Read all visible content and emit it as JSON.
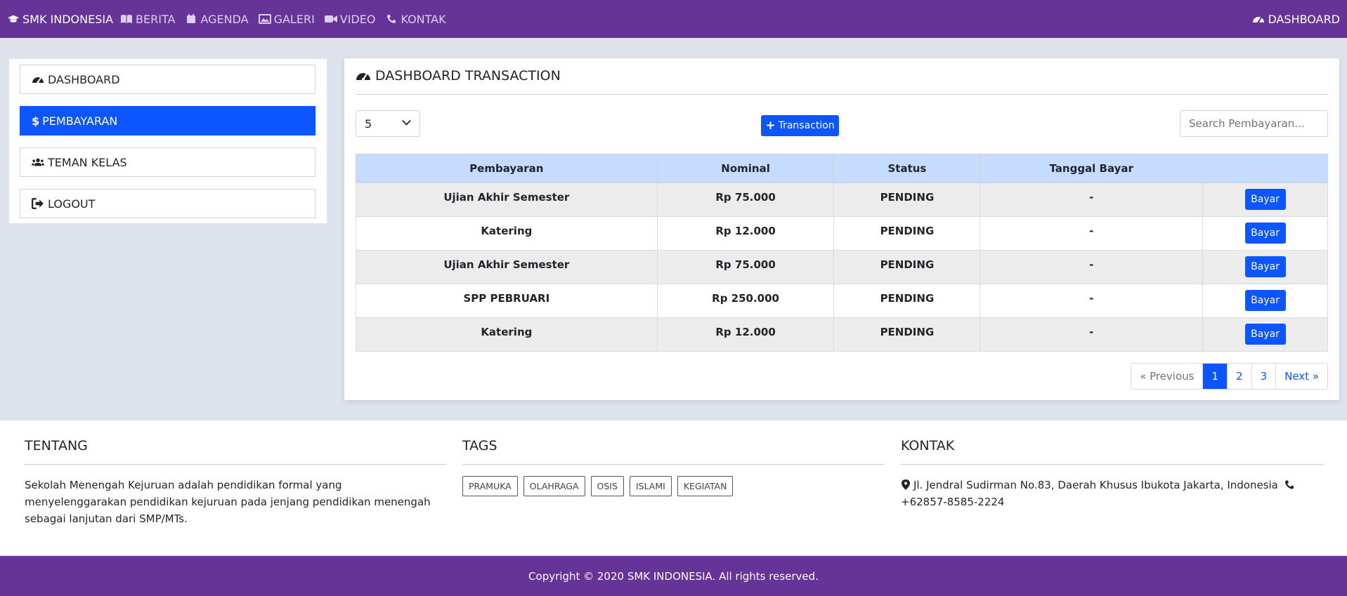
{
  "navbar": {
    "brand": "SMK INDONESIA",
    "items": [
      {
        "label": "BERITA",
        "icon": "book-icon"
      },
      {
        "label": "AGENDA",
        "icon": "calendar-icon"
      },
      {
        "label": "GALERI",
        "icon": "image-icon"
      },
      {
        "label": "VIDEO",
        "icon": "video-icon"
      },
      {
        "label": "KONTAK",
        "icon": "phone-icon"
      }
    ],
    "right_label": "DASHBOARD"
  },
  "sidebar": {
    "items": [
      {
        "label": "DASHBOARD",
        "icon": "gauge-icon"
      },
      {
        "label": "PEMBAYARAN",
        "icon": "dollar-icon",
        "active": true
      },
      {
        "label": "TEMAN KELAS",
        "icon": "users-icon"
      },
      {
        "label": "LOGOUT",
        "icon": "sign-out-icon"
      }
    ]
  },
  "main": {
    "title": "DASHBOARD TRANSACTION",
    "per_page_value": "5",
    "add_button_label": "Transaction",
    "search_placeholder": "Search Pembayaran...",
    "table": {
      "headers": [
        "Pembayaran",
        "Nominal",
        "Status",
        "Tanggal Bayar",
        ""
      ],
      "rows": [
        {
          "pembayaran": "Ujian Akhir Semester",
          "nominal": "Rp 75.000",
          "status": "PENDING",
          "tanggal": "-",
          "action": "Bayar"
        },
        {
          "pembayaran": "Katering",
          "nominal": "Rp 12.000",
          "status": "PENDING",
          "tanggal": "-",
          "action": "Bayar"
        },
        {
          "pembayaran": "Ujian Akhir Semester",
          "nominal": "Rp 75.000",
          "status": "PENDING",
          "tanggal": "-",
          "action": "Bayar"
        },
        {
          "pembayaran": "SPP PEBRUARI",
          "nominal": "Rp 250.000",
          "status": "PENDING",
          "tanggal": "-",
          "action": "Bayar"
        },
        {
          "pembayaran": "Katering",
          "nominal": "Rp 12.000",
          "status": "PENDING",
          "tanggal": "-",
          "action": "Bayar"
        }
      ]
    },
    "pagination": {
      "previous": "« Previous",
      "pages": [
        "1",
        "2",
        "3"
      ],
      "current": "1",
      "next": "Next »"
    }
  },
  "footer": {
    "tentang": {
      "title": "TENTANG",
      "text": "Sekolah Menengah Kejuruan adalah pendidikan formal yang menyelenggarakan pendidikan kejuruan pada jenjang pendidikan menengah sebagai lanjutan dari SMP/MTs."
    },
    "tags": {
      "title": "TAGS",
      "items": [
        "PRAMUKA",
        "OLAHRAGA",
        "OSIS",
        "ISLAMI",
        "KEGIATAN"
      ]
    },
    "kontak": {
      "title": "KONTAK",
      "address": "Jl. Jendral Sudirman No.83, Daerah Khusus Ibukota Jakarta, Indonesia",
      "phone": "+62857-8585-2224"
    },
    "copyright": "Copyright © 2020 SMK INDONESIA. All rights reserved."
  },
  "colors": {
    "brand_purple": "#663399",
    "primary_blue": "#0d55ff",
    "table_header": "#c5dcff"
  }
}
